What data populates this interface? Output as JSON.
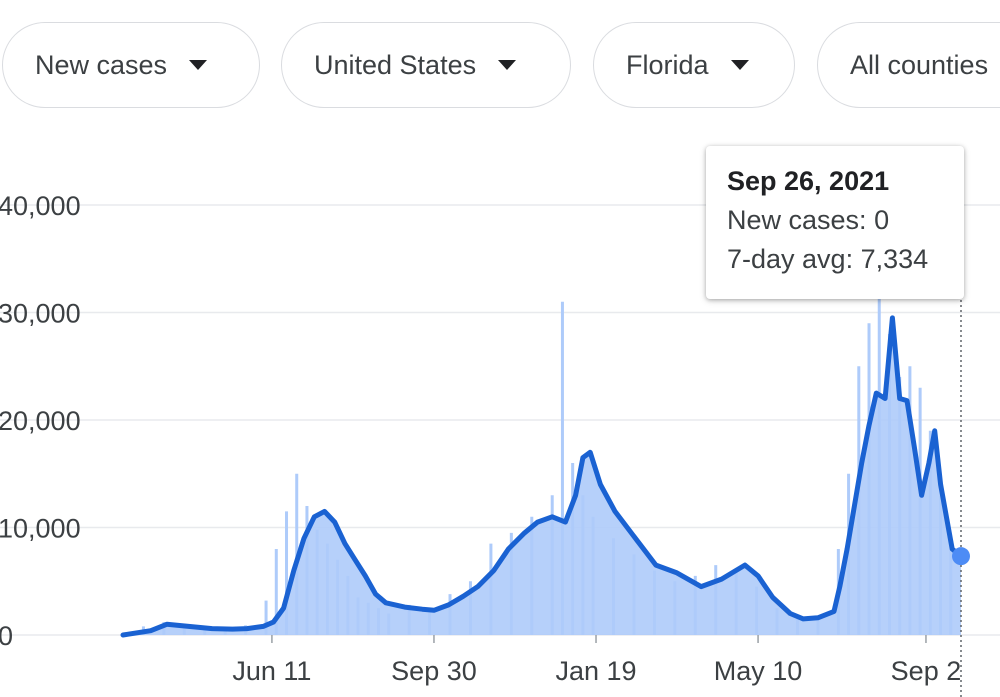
{
  "filters": [
    {
      "label": "New cases"
    },
    {
      "label": "United States"
    },
    {
      "label": "Florida"
    },
    {
      "label": "All counties"
    }
  ],
  "tooltip": {
    "date": "Sep 26, 2021",
    "new_cases_label": "New cases",
    "new_cases_value": "0",
    "avg_label": "7-day avg",
    "avg_value": "7,334"
  },
  "colors": {
    "bars": "#aecbfa",
    "line": "#1a62d2",
    "dot": "#4d8cf5",
    "grid": "#e8eaed",
    "text": "#3c4043"
  },
  "chart_data": {
    "type": "bar",
    "title": "",
    "xlabel": "",
    "ylabel": "",
    "ylim": [
      0,
      40000
    ],
    "y_ticks": [
      {
        "value": 0,
        "label": "0"
      },
      {
        "value": 10000,
        "label": "10,000"
      },
      {
        "value": 20000,
        "label": "20,000"
      },
      {
        "value": 30000,
        "label": "30,000"
      },
      {
        "value": 40000,
        "label": "40,000"
      }
    ],
    "x_ticks": [
      {
        "date": "2020-06-11",
        "label": "Jun 11"
      },
      {
        "date": "2020-09-30",
        "label": "Sep 30"
      },
      {
        "date": "2021-01-19",
        "label": "Jan 19"
      },
      {
        "date": "2021-05-10",
        "label": "May 10"
      },
      {
        "date": "2021-09-02",
        "label": "Sep 2"
      }
    ],
    "x_range": [
      "2020-03-01",
      "2021-09-26"
    ],
    "series": [
      {
        "name": "New cases",
        "kind": "bar",
        "sampling": "weekly",
        "x": [
          "2020-03-01",
          "2020-03-15",
          "2020-03-29",
          "2020-04-12",
          "2020-04-26",
          "2020-05-10",
          "2020-05-24",
          "2020-06-07",
          "2020-06-14",
          "2020-06-21",
          "2020-06-28",
          "2020-07-05",
          "2020-07-12",
          "2020-07-19",
          "2020-07-26",
          "2020-08-02",
          "2020-08-09",
          "2020-08-16",
          "2020-08-23",
          "2020-08-30",
          "2020-09-13",
          "2020-09-27",
          "2020-10-11",
          "2020-10-25",
          "2020-11-08",
          "2020-11-22",
          "2020-12-06",
          "2020-12-20",
          "2020-12-27",
          "2021-01-03",
          "2021-01-10",
          "2021-01-17",
          "2021-01-31",
          "2021-02-14",
          "2021-02-28",
          "2021-03-14",
          "2021-03-28",
          "2021-04-11",
          "2021-04-25",
          "2021-05-09",
          "2021-05-23",
          "2021-06-06",
          "2021-06-20",
          "2021-07-04",
          "2021-07-11",
          "2021-07-18",
          "2021-07-25",
          "2021-08-01",
          "2021-08-08",
          "2021-08-15",
          "2021-08-22",
          "2021-08-29",
          "2021-09-05",
          "2021-09-12",
          "2021-09-19",
          "2021-09-26"
        ],
        "values": [
          0,
          800,
          1200,
          1000,
          700,
          600,
          900,
          3200,
          8000,
          11500,
          15000,
          12000,
          9800,
          8500,
          7000,
          5500,
          3500,
          3000,
          2500,
          2000,
          2800,
          2500,
          3800,
          5000,
          8500,
          9500,
          11000,
          13000,
          31000,
          16000,
          13000,
          11000,
          9000,
          7500,
          6000,
          5000,
          5500,
          6500,
          6000,
          4500,
          2500,
          1500,
          1800,
          8000,
          15000,
          25000,
          29000,
          32000,
          28000,
          24000,
          25000,
          23000,
          19000,
          13000,
          9000,
          0
        ]
      },
      {
        "name": "7-day avg",
        "kind": "line",
        "sampling": "irregular",
        "x": [
          "2020-03-01",
          "2020-03-20",
          "2020-03-31",
          "2020-04-15",
          "2020-05-01",
          "2020-05-15",
          "2020-05-25",
          "2020-06-05",
          "2020-06-12",
          "2020-06-19",
          "2020-06-26",
          "2020-07-03",
          "2020-07-10",
          "2020-07-17",
          "2020-07-24",
          "2020-07-31",
          "2020-08-07",
          "2020-08-14",
          "2020-08-21",
          "2020-08-28",
          "2020-09-10",
          "2020-09-22",
          "2020-09-30",
          "2020-10-10",
          "2020-10-20",
          "2020-10-30",
          "2020-11-10",
          "2020-11-20",
          "2020-12-01",
          "2020-12-10",
          "2020-12-20",
          "2020-12-29",
          "2021-01-05",
          "2021-01-10",
          "2021-01-15",
          "2021-01-22",
          "2021-02-01",
          "2021-02-15",
          "2021-03-01",
          "2021-03-15",
          "2021-04-01",
          "2021-04-15",
          "2021-05-01",
          "2021-05-10",
          "2021-05-20",
          "2021-06-01",
          "2021-06-10",
          "2021-06-20",
          "2021-07-01",
          "2021-07-05",
          "2021-07-10",
          "2021-07-15",
          "2021-07-20",
          "2021-07-25",
          "2021-07-30",
          "2021-08-05",
          "2021-08-10",
          "2021-08-15",
          "2021-08-20",
          "2021-08-25",
          "2021-08-30",
          "2021-09-04",
          "2021-09-08",
          "2021-09-12",
          "2021-09-16",
          "2021-09-20",
          "2021-09-26"
        ],
        "values": [
          0,
          400,
          1000,
          800,
          600,
          550,
          600,
          800,
          1200,
          2500,
          6000,
          9000,
          11000,
          11500,
          10500,
          8500,
          7000,
          5500,
          3800,
          3000,
          2600,
          2400,
          2300,
          2800,
          3600,
          4500,
          6000,
          8000,
          9500,
          10500,
          11000,
          10500,
          13000,
          16500,
          17000,
          14000,
          11500,
          9000,
          6500,
          5800,
          4500,
          5200,
          6500,
          5500,
          3500,
          2000,
          1500,
          1600,
          2200,
          4500,
          8000,
          12000,
          16000,
          19500,
          22500,
          22000,
          29500,
          22000,
          21800,
          17500,
          13000,
          16000,
          19000,
          14000,
          11000,
          8000,
          7334
        ]
      }
    ],
    "grid": true,
    "legend": "none",
    "highlight": {
      "date": "2021-09-26",
      "series": "7-day avg",
      "value": 7334
    }
  }
}
